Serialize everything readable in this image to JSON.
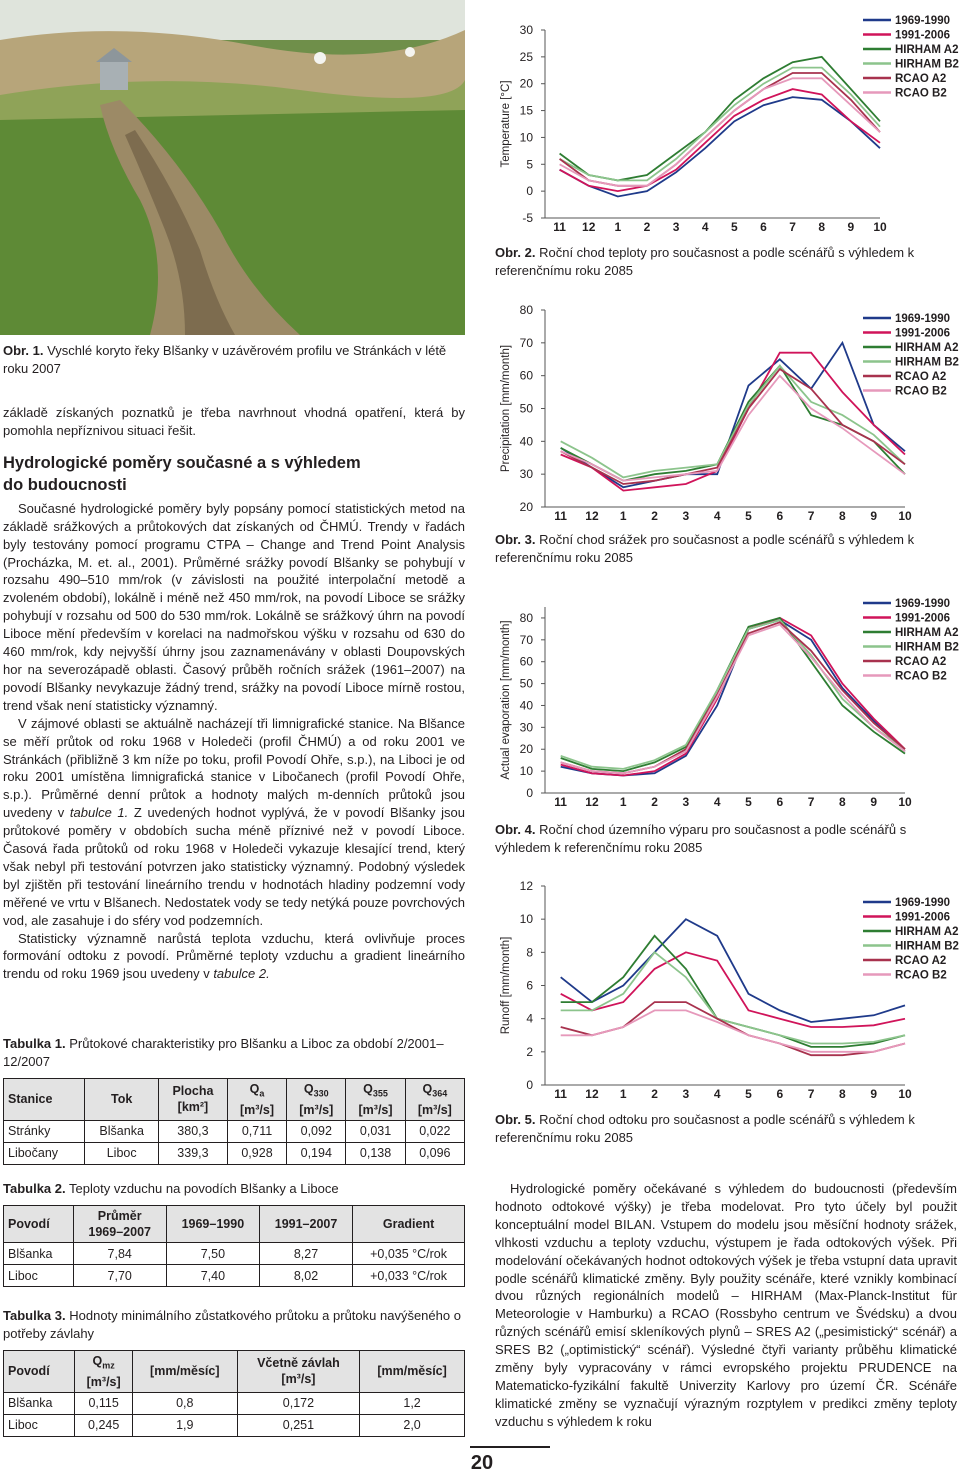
{
  "photo_caption": {
    "label": "Obr. 1.",
    "text": "Vyschlé koryto řeky Blšanky v uzávěrovém profilu ve Stránkách v létě roku 2007"
  },
  "left_text": {
    "intro": "základě získaných poznatků je třeba navrhnout vhodná opatření, která by pomohla nepříznivou situaci řešit.",
    "heading": [
      "Hydrologické poměry současné a s výhledem",
      "do budoucnosti"
    ],
    "paragraphs": [
      [
        {
          "text": "Současné hydrologické poměry byly popsány pomocí statistických metod na základě srážkových a průtokových dat získaných od ČHMÚ. Trendy v řadách byly testovány pomocí programu CTPA – Change and Trend Point Analysis (Procházka, M. et. al., 2001). Průměrné srážky povodí Blšanky se pohybují v rozsahu 490–510 mm/rok (v závislosti na použité interpolační metodě a zvoleném období), lokálně i méně než 450 mm/rok, na povodí Liboce se srážky pohybují v rozsahu od 500 do 530 mm/rok. Lokálně se srážkový úhrn na povodí Liboce mění především v korelaci na nadmořskou výšku v rozsahu od 630 do 460 mm/rok, kdy nejvyšší úhrny jsou zaznamenávány v oblasti Doupovských hor na severozápadě oblasti. Časový průběh ročních srážek (1961–2007) na povodí Blšanky nevykazuje žádný trend, srážky na povodí Liboce mírně rostou, trend však není statisticky významný."
        }
      ],
      [
        {
          "text": "V zájmové oblasti se aktuálně nacházejí tři limnigrafické stanice. Na Blšance se měří průtok od roku 1968 v Holedeči (profil ČHMÚ) a od roku 2001 ve Stránkách (přibližně 3 km níže po toku, profil Povodí Ohře, s.p.), na Liboci je od roku 2001 umístěna limnigrafická stanice v Libočanech (profil Povodí Ohře, s.p.). Průměrné denní průtok a hodnoty malých m-denních průtoků jsou uvedeny v "
        },
        {
          "text": "tabulce 1.",
          "italic": true
        },
        {
          "text": " Z uvedených hodnot vyplývá, že v povodí Blšanky jsou průtokové poměry v obdobích sucha méně příznivé než v povodí Liboce. Časová řada průtoků od roku 1968 v Holedeči vykazuje klesající trend, který však nebyl při testování potvrzen jako statisticky významný. Podobný výsledek byl zjištěn při testování lineárního trendu v hodnotách hladiny podzemní vody měřené ve vrtu v Blšanech. Nedostatek vody se tedy netýká pouze povrchových vod, ale zasahuje i do sféry vod podzemních."
        }
      ],
      [
        {
          "text": "Statisticky významně narůstá teplota vzduchu, která ovlivňuje proces formování odtoku z povodí. Průměrné teploty vzduchu a gradient lineárního trendu od roku 1969 jsou uvedeny v "
        },
        {
          "text": "tabulce 2.",
          "italic": true
        }
      ]
    ]
  },
  "right_text": "Hydrologické poměry očekávané s výhledem do budoucnosti (především hodnoto odtokové výšky) je třeba modelovat. Pro tyto účely byl použit konceptuální model BILAN. Vstupem do modelu jsou měsíční hodnoty srážek, vlhkosti vzduchu a teploty vzduchu, výstupem je řada odtokových výšek. Při modelování očekávaných hodnot odtokových výšek je třeba vstupní data upravit podle scénářů klimatické změny. Byly použity scénáře, které vznikly kombinací dvou různých regionálních modelů – HIRHAM (Max-Planck-Institut für Meteorologie v Hamburku) a RCAO (Rossbyho centrum ve Švédsku) a dvou různých scénářů emisí skleníkových plynů – SRES A2 („pesimistický“ scénář) a SRES B2 („optimistický“ scénář). Výsledné čtyři varianty průběhu klimatické změny byly vypracovány v rámci evropského projektu PRUDENCE na Matematicko-fyzikální fakultě Univerzity Karlovy pro území ČR. Scénáře klimatické změny se vyznačují výrazným rozptylem v predikci změny teploty vzduchu s výhledem k roku",
  "tables": [
    {
      "label": "Tabulka 1.",
      "caption": "Průtokové charakteristiky pro Blšanku a Liboc za období 2/2001–12/2007",
      "header": [
        {
          "text": "Stanice"
        },
        {
          "text": "Tok"
        },
        {
          "text": "Plocha",
          "unit": "[km²]"
        },
        {
          "text": "Q",
          "sub": "a",
          "unit": "[m³/s]"
        },
        {
          "text": "Q",
          "sub": "330",
          "unit": "[m³/s]"
        },
        {
          "text": "Q",
          "sub": "355",
          "unit": "[m³/s]"
        },
        {
          "text": "Q",
          "sub": "364",
          "unit": "[m³/s]"
        }
      ],
      "rows": [
        [
          "Stránky",
          "Blšanka",
          "380,3",
          "0,711",
          "0,092",
          "0,031",
          "0,022"
        ],
        [
          "Libočany",
          "Liboc",
          "339,3",
          "0,928",
          "0,194",
          "0,138",
          "0,096"
        ]
      ]
    },
    {
      "label": "Tabulka 2.",
      "caption": "Teploty vzduchu na povodích Blšanky a Liboce",
      "header": [
        {
          "text": "Povodí"
        },
        {
          "text": "Průměr",
          "unit": "1969–2007"
        },
        {
          "text": "1969–1990"
        },
        {
          "text": "1991–2007"
        },
        {
          "text": "Gradient"
        }
      ],
      "rows": [
        [
          "Blšanka",
          "7,84",
          "7,50",
          "8,27",
          "+0,035 °C/rok"
        ],
        [
          "Liboc",
          "7,70",
          "7,40",
          "8,02",
          "+0,033 °C/rok"
        ]
      ]
    },
    {
      "label": "Tabulka 3.",
      "caption": "Hodnoty minimálního zůstatkového průtoku a průtoku navýšeného o potřeby závlahy",
      "header": [
        {
          "text": "Povodí"
        },
        {
          "text": "Q",
          "sub": "mz",
          "unit": "[m³/s]"
        },
        {
          "text": "[mm/měsíc]"
        },
        {
          "text": "Včetně závlah",
          "unit": "[m³/s]"
        },
        {
          "text": "[mm/měsíc]"
        }
      ],
      "rows": [
        [
          "Blšanka",
          "0,115",
          "0,8",
          "0,172",
          "1,2"
        ],
        [
          "Liboc",
          "0,245",
          "1,9",
          "0,251",
          "2,0"
        ]
      ]
    }
  ],
  "page_number": "20",
  "chart_data": [
    {
      "type": "line",
      "y_label": "Temperature [°C]",
      "caption_label": "Obr. 2.",
      "caption": "Roční chod teploty pro současnost a podle scénářů s výhledem k referenčnímu roku 2085",
      "categories": [
        "11",
        "12",
        "1",
        "2",
        "3",
        "4",
        "5",
        "6",
        "7",
        "8",
        "9",
        "10"
      ],
      "ylim": [
        -5,
        30
      ],
      "yticks": [
        -5,
        0,
        5,
        10,
        15,
        20,
        25,
        30
      ],
      "legend": "upper right",
      "series": [
        {
          "name": "1969-1990",
          "color": "#1f3a8a",
          "values": [
            4,
            1,
            -1,
            0,
            3.5,
            8,
            13,
            16,
            17.5,
            17,
            13,
            8
          ]
        },
        {
          "name": "1991-2006",
          "color": "#d0145a",
          "values": [
            4,
            1,
            0,
            1,
            4,
            9,
            14,
            17,
            19,
            18,
            13,
            9
          ]
        },
        {
          "name": "HIRHAM A2",
          "color": "#2e7d32",
          "values": [
            7,
            3,
            2,
            3,
            7,
            11,
            17,
            21,
            24,
            25,
            19,
            13
          ]
        },
        {
          "name": "HIRHAM B2",
          "color": "#8cc48c",
          "values": [
            6,
            3,
            2,
            2,
            6,
            11,
            16,
            20,
            23,
            23,
            18,
            12
          ]
        },
        {
          "name": "RCAO A2",
          "color": "#a8324e",
          "values": [
            6,
            2,
            1,
            1,
            5,
            10,
            15,
            19,
            22,
            22,
            17,
            11
          ]
        },
        {
          "name": "RCAO B2",
          "color": "#e699bb",
          "values": [
            5,
            2,
            1,
            1,
            5,
            10,
            15,
            19,
            21,
            21,
            16,
            11
          ]
        }
      ]
    },
    {
      "type": "line",
      "y_label": "Precipitation [mm/month]",
      "caption_label": "Obr. 3.",
      "caption": "Roční chod srážek pro současnost a podle scénářů s výhledem k referenčnímu roku 2085",
      "categories": [
        "11",
        "12",
        "1",
        "2",
        "3",
        "4",
        "5",
        "6",
        "7",
        "8",
        "9",
        "10"
      ],
      "ylim": [
        20,
        80
      ],
      "yticks": [
        20,
        30,
        40,
        50,
        60,
        70,
        80
      ],
      "legend": "upper right",
      "series": [
        {
          "name": "1969-1990",
          "color": "#1f3a8a",
          "values": [
            38,
            32,
            26,
            28,
            30,
            30,
            57,
            65,
            56,
            70,
            45,
            37
          ]
        },
        {
          "name": "1991-2006",
          "color": "#d0145a",
          "values": [
            36,
            32,
            25,
            26,
            27,
            31,
            50,
            67,
            67,
            55,
            45,
            36
          ]
        },
        {
          "name": "HIRHAM A2",
          "color": "#2e7d32",
          "values": [
            38,
            33,
            28,
            30,
            31,
            33,
            52,
            63,
            48,
            45,
            40,
            30
          ]
        },
        {
          "name": "HIRHAM B2",
          "color": "#8cc48c",
          "values": [
            40,
            35,
            29,
            31,
            32,
            33,
            51,
            63,
            52,
            48,
            42,
            33
          ]
        },
        {
          "name": "RCAO A2",
          "color": "#a8324e",
          "values": [
            37,
            32,
            27,
            28,
            30,
            32,
            50,
            62,
            56,
            45,
            40,
            33
          ]
        },
        {
          "name": "RCAO B2",
          "color": "#e699bb",
          "values": [
            37,
            33,
            28,
            29,
            30,
            31,
            48,
            60,
            50,
            44,
            37,
            30
          ]
        }
      ]
    },
    {
      "type": "line",
      "y_label": "Actual evaporation [mm/month]",
      "caption_label": "Obr. 4.",
      "caption": "Roční chod územního výparu pro současnost a podle scénářů s výhledem k referenčnímu roku 2085",
      "categories": [
        "11",
        "12",
        "1",
        "2",
        "3",
        "4",
        "5",
        "6",
        "7",
        "8",
        "9",
        "10"
      ],
      "ylim": [
        0,
        85
      ],
      "yticks": [
        0,
        10,
        20,
        30,
        40,
        50,
        60,
        70,
        80
      ],
      "legend": "upper right",
      "series": [
        {
          "name": "1969-1990",
          "color": "#1f3a8a",
          "values": [
            12,
            9,
            8,
            9,
            17,
            40,
            75,
            79,
            70,
            48,
            33,
            19
          ]
        },
        {
          "name": "1991-2006",
          "color": "#d0145a",
          "values": [
            13,
            9,
            8,
            10,
            18,
            43,
            75,
            80,
            72,
            50,
            34,
            20
          ]
        },
        {
          "name": "HIRHAM A2",
          "color": "#2e7d32",
          "values": [
            16,
            11,
            10,
            14,
            21,
            47,
            76,
            80,
            60,
            40,
            28,
            18
          ]
        },
        {
          "name": "HIRHAM B2",
          "color": "#8cc48c",
          "values": [
            17,
            12,
            11,
            15,
            22,
            47,
            75,
            79,
            63,
            43,
            30,
            20
          ]
        },
        {
          "name": "RCAO A2",
          "color": "#a8324e",
          "values": [
            14,
            10,
            9,
            12,
            20,
            45,
            73,
            78,
            65,
            47,
            32,
            20
          ]
        },
        {
          "name": "RCAO B2",
          "color": "#e699bb",
          "values": [
            14,
            10,
            9,
            12,
            19,
            44,
            72,
            77,
            62,
            45,
            30,
            19
          ]
        }
      ]
    },
    {
      "type": "line",
      "y_label": "Runoff [mm/month]",
      "caption_label": "Obr. 5.",
      "caption": "Roční chod odtoku pro současnost a podle scénářů s výhledem k referenčnímu roku 2085",
      "categories": [
        "11",
        "12",
        "1",
        "2",
        "3",
        "4",
        "5",
        "6",
        "7",
        "8",
        "9",
        "10"
      ],
      "ylim": [
        0,
        12
      ],
      "yticks": [
        0,
        2,
        4,
        6,
        8,
        10,
        12
      ],
      "legend": "upper right",
      "series": [
        {
          "name": "1969-1990",
          "color": "#1f3a8a",
          "values": [
            6.5,
            5,
            6,
            8,
            10,
            9,
            5.5,
            4.5,
            3.8,
            4,
            4.2,
            4.8
          ]
        },
        {
          "name": "1991-2006",
          "color": "#d0145a",
          "values": [
            5.5,
            4.5,
            5,
            7,
            8,
            7.5,
            4.5,
            4,
            3.5,
            3.5,
            3.6,
            4
          ]
        },
        {
          "name": "HIRHAM A2",
          "color": "#2e7d32",
          "values": [
            5,
            5,
            6.5,
            9,
            7,
            4,
            3.5,
            3,
            2.3,
            2.3,
            2.5,
            3
          ]
        },
        {
          "name": "HIRHAM B2",
          "color": "#8cc48c",
          "values": [
            4.5,
            4.5,
            5.5,
            8,
            6.5,
            4,
            3.5,
            3,
            2.5,
            2.5,
            2.6,
            3
          ]
        },
        {
          "name": "RCAO A2",
          "color": "#a8324e",
          "values": [
            3.5,
            3,
            3.5,
            5,
            5,
            4,
            3,
            2.5,
            1.8,
            1.8,
            2,
            2.5
          ]
        },
        {
          "name": "RCAO B2",
          "color": "#e699bb",
          "values": [
            3,
            3,
            3.5,
            4.5,
            4.5,
            3.8,
            3,
            2.5,
            2,
            2,
            2,
            2.5
          ]
        }
      ]
    }
  ]
}
